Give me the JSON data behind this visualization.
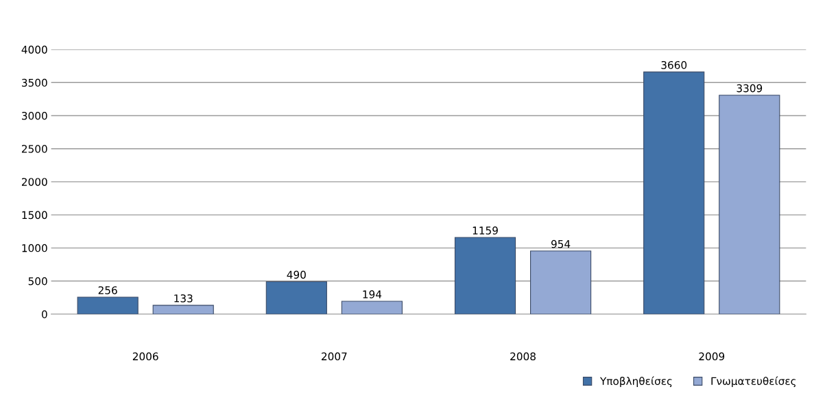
{
  "chart_data": {
    "type": "bar",
    "categories": [
      "2006",
      "2007",
      "2008",
      "2009"
    ],
    "series": [
      {
        "name": "Υποβληθείσες",
        "color": "#4272a8",
        "values": [
          256,
          490,
          1159,
          3660
        ]
      },
      {
        "name": "Γνωματευθείσες",
        "color": "#94a9d4",
        "values": [
          133,
          194,
          954,
          3309
        ]
      }
    ],
    "ylim": [
      0,
      4000
    ],
    "yticks": [
      0,
      500,
      1000,
      1500,
      2000,
      2500,
      3000,
      3500,
      4000
    ],
    "grid": "y",
    "legend": "bottom right",
    "data_labels": true
  }
}
